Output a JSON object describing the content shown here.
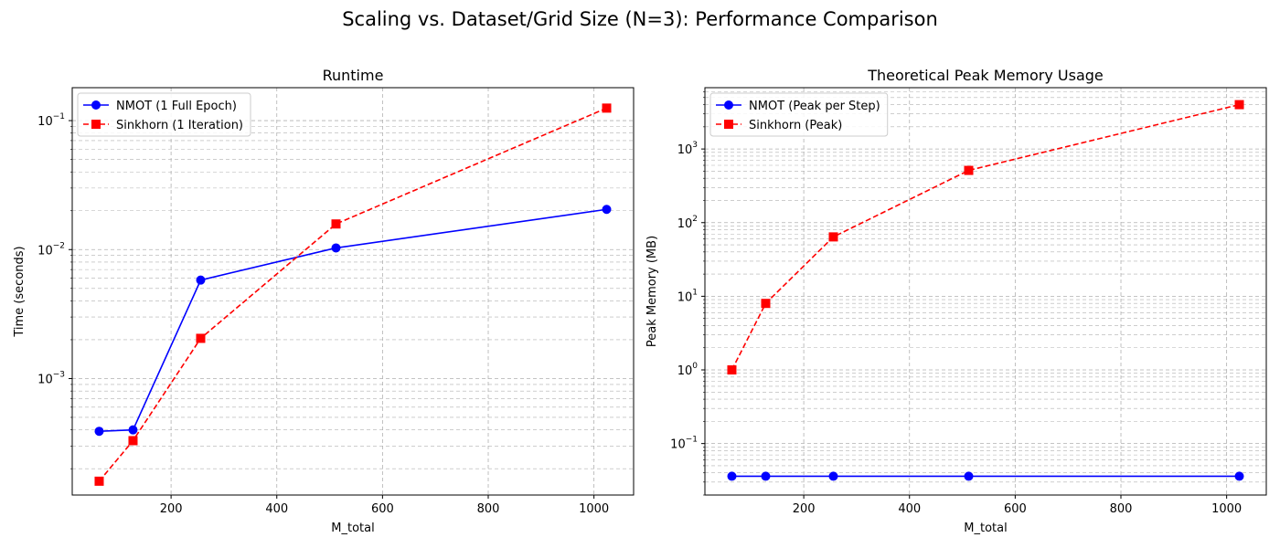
{
  "figure": {
    "suptitle": "Scaling vs. Dataset/Grid Size (N=3): Performance Comparison"
  },
  "chart_data": [
    {
      "type": "line",
      "title": "Runtime",
      "xlabel": "M_total",
      "ylabel": "Time (seconds)",
      "yscale": "log",
      "xlim": [
        13,
        1075
      ],
      "ylim": [
        0.000125,
        0.18
      ],
      "x_ticks": [
        200,
        400,
        600,
        800,
        1000
      ],
      "x_tick_labels": [
        "200",
        "400",
        "600",
        "800",
        "1000"
      ],
      "y_ticks": [
        0.001,
        0.01,
        0.1
      ],
      "y_tick_labels": [
        {
          "base": "10",
          "exp": "−3"
        },
        {
          "base": "10",
          "exp": "−2"
        },
        {
          "base": "10",
          "exp": "−1"
        }
      ],
      "grid": true,
      "legend_position": "upper-left",
      "series": [
        {
          "name": "NMOT (1 Full Epoch)",
          "color": "#0000ff",
          "linestyle": "solid",
          "marker": "circle",
          "x": [
            64,
            128,
            256,
            512,
            1024
          ],
          "y": [
            0.00039,
            0.0004,
            0.0058,
            0.0103,
            0.0205
          ]
        },
        {
          "name": "Sinkhorn (1 Iteration)",
          "color": "#ff0000",
          "linestyle": "dashed",
          "marker": "square",
          "x": [
            64,
            128,
            256,
            512,
            1024
          ],
          "y": [
            0.00016,
            0.00033,
            0.00205,
            0.0158,
            0.125
          ]
        }
      ]
    },
    {
      "type": "line",
      "title": "Theoretical Peak Memory Usage",
      "xlabel": "M_total",
      "ylabel": "Peak Memory (MB)",
      "yscale": "log",
      "xlim": [
        13,
        1075
      ],
      "ylim": [
        0.02,
        6800
      ],
      "x_ticks": [
        200,
        400,
        600,
        800,
        1000
      ],
      "x_tick_labels": [
        "200",
        "400",
        "600",
        "800",
        "1000"
      ],
      "y_ticks": [
        0.1,
        1,
        10,
        100,
        1000
      ],
      "y_tick_labels": [
        {
          "base": "10",
          "exp": "−1"
        },
        {
          "base": "10",
          "exp": "0"
        },
        {
          "base": "10",
          "exp": "1"
        },
        {
          "base": "10",
          "exp": "2"
        },
        {
          "base": "10",
          "exp": "3"
        }
      ],
      "grid": true,
      "legend_position": "upper-left",
      "series": [
        {
          "name": "NMOT (Peak per Step)",
          "color": "#0000ff",
          "linestyle": "solid",
          "marker": "circle",
          "x": [
            64,
            128,
            256,
            512,
            1024
          ],
          "y": [
            0.036,
            0.036,
            0.036,
            0.036,
            0.036
          ]
        },
        {
          "name": "Sinkhorn (Peak)",
          "color": "#ff0000",
          "linestyle": "dashed",
          "marker": "square",
          "x": [
            64,
            128,
            256,
            512,
            1024
          ],
          "y": [
            1,
            8,
            64,
            512,
            4000
          ]
        }
      ]
    }
  ]
}
